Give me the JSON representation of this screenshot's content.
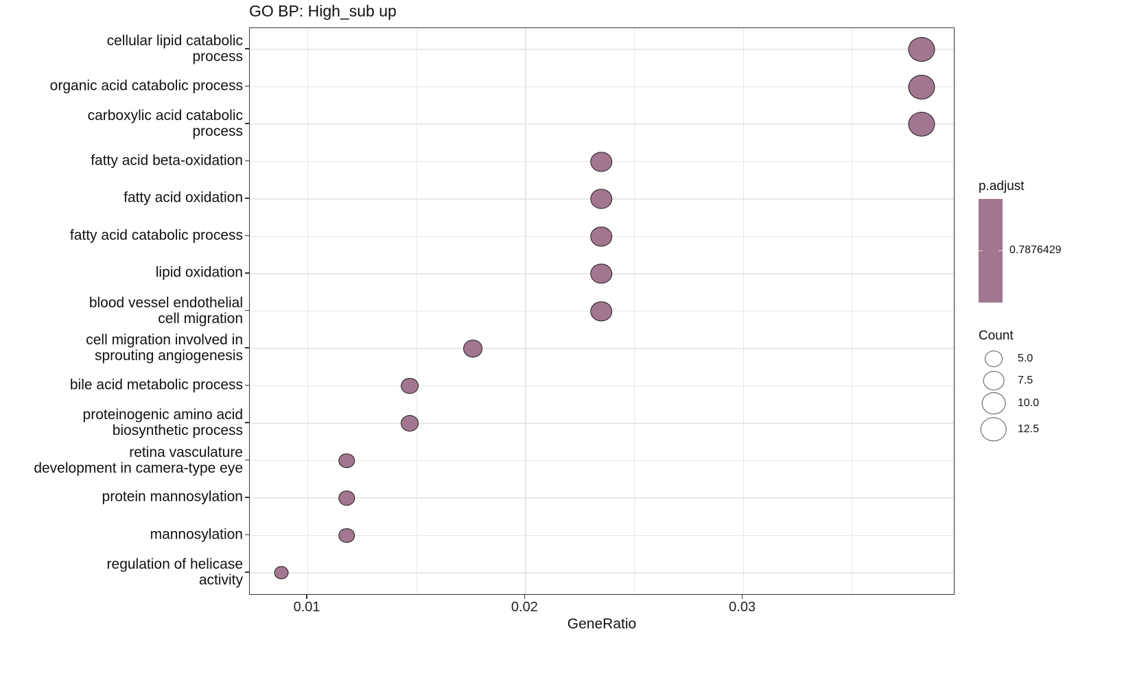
{
  "chart_data": {
    "type": "scatter",
    "subtype": "dotplot",
    "title": "GO BP: High_sub up",
    "xlabel": "GeneRatio",
    "ylabel": "",
    "xlim": [
      0.00735,
      0.03975
    ],
    "xticks": [
      0.01,
      0.02,
      0.03
    ],
    "xtick_labels": [
      "0.01",
      "0.02",
      "0.03"
    ],
    "grid": true,
    "fill_color": "#a3768f",
    "categories": [
      "cellular lipid catabolic\nprocess",
      "organic acid catabolic process",
      "carboxylic acid catabolic\nprocess",
      "fatty acid beta-oxidation",
      "fatty acid oxidation",
      "fatty acid catabolic process",
      "lipid oxidation",
      "blood vessel endothelial\ncell migration",
      "cell migration involved in\nsprouting angiogenesis",
      "bile acid metabolic process",
      "proteinogenic amino acid\nbiosynthetic process",
      "retina vasculature\ndevelopment in camera-type eye",
      "protein mannosylation",
      "mannosylation",
      "regulation of helicase\nactivity"
    ],
    "points": [
      {
        "term": "cellular lipid catabolic process",
        "gene_ratio": 0.0382,
        "count": 13,
        "p_adjust": 0.7876429
      },
      {
        "term": "organic acid catabolic process",
        "gene_ratio": 0.0382,
        "count": 13,
        "p_adjust": 0.7876429
      },
      {
        "term": "carboxylic acid catabolic process",
        "gene_ratio": 0.0382,
        "count": 13,
        "p_adjust": 0.7876429
      },
      {
        "term": "fatty acid beta-oxidation",
        "gene_ratio": 0.0235,
        "count": 8,
        "p_adjust": 0.7876429
      },
      {
        "term": "fatty acid oxidation",
        "gene_ratio": 0.0235,
        "count": 8,
        "p_adjust": 0.7876429
      },
      {
        "term": "fatty acid catabolic process",
        "gene_ratio": 0.0235,
        "count": 8,
        "p_adjust": 0.7876429
      },
      {
        "term": "lipid oxidation",
        "gene_ratio": 0.0235,
        "count": 8,
        "p_adjust": 0.7876429
      },
      {
        "term": "blood vessel endothelial cell migration",
        "gene_ratio": 0.0235,
        "count": 8,
        "p_adjust": 0.7876429
      },
      {
        "term": "cell migration involved in sprouting angiogenesis",
        "gene_ratio": 0.0176,
        "count": 6,
        "p_adjust": 0.7876429
      },
      {
        "term": "bile acid metabolic process",
        "gene_ratio": 0.0147,
        "count": 5,
        "p_adjust": 0.7876429
      },
      {
        "term": "proteinogenic amino acid biosynthetic process",
        "gene_ratio": 0.0147,
        "count": 5,
        "p_adjust": 0.7876429
      },
      {
        "term": "retina vasculature development in camera-type eye",
        "gene_ratio": 0.0118,
        "count": 4,
        "p_adjust": 0.7876429
      },
      {
        "term": "protein mannosylation",
        "gene_ratio": 0.0118,
        "count": 4,
        "p_adjust": 0.7876429
      },
      {
        "term": "mannosylation",
        "gene_ratio": 0.0118,
        "count": 4,
        "p_adjust": 0.7876429
      },
      {
        "term": "regulation of helicase activity",
        "gene_ratio": 0.0088,
        "count": 3,
        "p_adjust": 0.7876429
      }
    ],
    "legend": {
      "position": "right",
      "color": {
        "title": "p.adjust",
        "labels": [
          "0.7876429"
        ],
        "color": "#a3768f"
      },
      "size": {
        "title": "Count",
        "labels": [
          "5.0",
          "7.5",
          "10.0",
          "12.5"
        ],
        "values": [
          5.0,
          7.5,
          10.0,
          12.5
        ]
      }
    }
  },
  "labels": {
    "title": "GO BP: High_sub up",
    "xlabel": "GeneRatio",
    "xticks": [
      "0.01",
      "0.02",
      "0.03"
    ],
    "y": [
      [
        "cellular lipid catabolic",
        "process"
      ],
      [
        "organic acid catabolic process"
      ],
      [
        "carboxylic acid catabolic",
        "process"
      ],
      [
        "fatty acid beta-oxidation"
      ],
      [
        "fatty acid oxidation"
      ],
      [
        "fatty acid catabolic process"
      ],
      [
        "lipid oxidation"
      ],
      [
        "blood vessel endothelial",
        "cell migration"
      ],
      [
        "cell migration involved in",
        "sprouting angiogenesis"
      ],
      [
        "bile acid metabolic process"
      ],
      [
        "proteinogenic amino acid",
        "biosynthetic process"
      ],
      [
        "retina vasculature",
        "development in camera-type eye"
      ],
      [
        "protein mannosylation"
      ],
      [
        "mannosylation"
      ],
      [
        "regulation of helicase",
        "activity"
      ]
    ],
    "legend_padj_title": "p.adjust",
    "legend_padj_value": "0.7876429",
    "legend_count_title": "Count",
    "legend_count_labels": [
      "5.0",
      "7.5",
      "10.0",
      "12.5"
    ]
  },
  "colors": {
    "dot_fill": "#a3768f",
    "dot_stroke": "#1a1a1a",
    "panel_border": "#333333",
    "grid": "#ebebeb"
  }
}
